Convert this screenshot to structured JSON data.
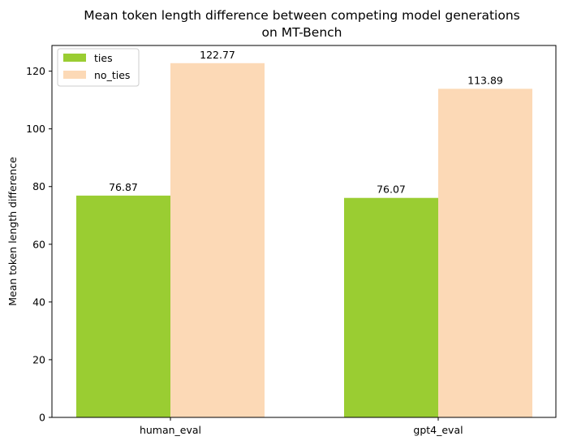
{
  "chart_data": {
    "type": "bar",
    "title_line1": "Mean token length difference between competing model generations",
    "title_line2": "on MT-Bench",
    "xlabel": "",
    "ylabel": "Mean token length difference",
    "categories": [
      "human_eval",
      "gpt4_eval"
    ],
    "series": [
      {
        "name": "ties",
        "values": [
          76.87,
          76.07
        ],
        "labels": [
          "76.87",
          "76.07"
        ],
        "color": "#9acd32"
      },
      {
        "name": "no_ties",
        "values": [
          122.77,
          113.89
        ],
        "labels": [
          "122.77",
          "113.89"
        ],
        "color": "#fcd9b6"
      }
    ],
    "ylim": [
      0,
      128.9
    ],
    "yticks": [
      0,
      20,
      40,
      60,
      80,
      100,
      120
    ],
    "ytick_labels": [
      "0",
      "20",
      "40",
      "60",
      "80",
      "100",
      "120"
    ],
    "grid": false,
    "legend_position": "top-left"
  }
}
